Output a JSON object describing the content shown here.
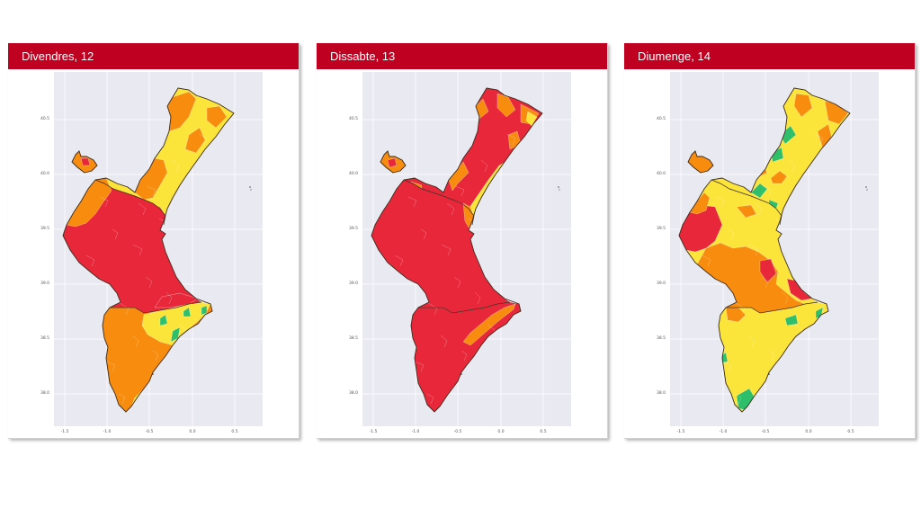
{
  "panels": [
    {
      "title": "Divendres, 12",
      "scheme": "fri"
    },
    {
      "title": "Dissabte, 13",
      "scheme": "sat"
    },
    {
      "title": "Diumenge, 14",
      "scheme": "sun"
    }
  ],
  "axes": {
    "y_ticks": [
      "40.5",
      "40.0",
      "39.5",
      "39.0",
      "38.5",
      "38.0"
    ],
    "x_ticks": [
      "-1.5",
      "-1.0",
      "-0.5",
      "0.0",
      "0.5"
    ]
  },
  "colors": {
    "header": "#c00021",
    "plot_bg": "#e9e9f1",
    "red": "#e8283a",
    "orange": "#f78c0f",
    "yellow": "#fce53a",
    "green": "#2fbf6a",
    "border": "#3a2a1a"
  },
  "chart_data": [
    {
      "type": "heatmap",
      "title": "Divendres, 12",
      "xlabel": "",
      "ylabel": "",
      "xlim": [
        -1.65,
        0.8
      ],
      "ylim": [
        37.75,
        40.95
      ],
      "x_ticks": [
        -1.5,
        -1.0,
        -0.5,
        0.0,
        0.5
      ],
      "y_ticks": [
        40.5,
        40.0,
        39.5,
        39.0,
        38.5,
        38.0
      ],
      "grid": true,
      "regions": [
        {
          "area": "North (Castelló) interior",
          "level": "orange"
        },
        {
          "area": "North (Castelló) coast",
          "level": "yellow"
        },
        {
          "area": "Castelló coastal strip",
          "level": "green"
        },
        {
          "area": "Central (València)",
          "level": "red"
        },
        {
          "area": "València west interior",
          "level": "orange"
        },
        {
          "area": "South (Alacant) interior",
          "level": "orange"
        },
        {
          "area": "Alacant east",
          "level": "yellow"
        },
        {
          "area": "Alacant coastal spots",
          "level": "green"
        }
      ]
    },
    {
      "type": "heatmap",
      "title": "Dissabte, 13",
      "xlabel": "",
      "ylabel": "",
      "xlim": [
        -1.65,
        0.8
      ],
      "ylim": [
        37.75,
        40.95
      ],
      "x_ticks": [
        -1.5,
        -1.0,
        -0.5,
        0.0,
        0.5
      ],
      "y_ticks": [
        40.5,
        40.0,
        39.5,
        39.0,
        38.5,
        38.0
      ],
      "grid": true,
      "regions": [
        {
          "area": "North (Castelló)",
          "level": "red/orange mix"
        },
        {
          "area": "Castelló coast",
          "level": "yellow"
        },
        {
          "area": "Central (València)",
          "level": "red"
        },
        {
          "area": "South (Alacant)",
          "level": "red"
        },
        {
          "area": "Alacant coastal strip",
          "level": "orange"
        }
      ]
    },
    {
      "type": "heatmap",
      "title": "Diumenge, 14",
      "xlabel": "",
      "ylabel": "",
      "xlim": [
        -1.65,
        0.8
      ],
      "ylim": [
        37.75,
        40.95
      ],
      "x_ticks": [
        -1.5,
        -1.0,
        -0.5,
        0.0,
        0.5
      ],
      "y_ticks": [
        40.5,
        40.0,
        39.5,
        39.0,
        38.5,
        38.0
      ],
      "grid": true,
      "regions": [
        {
          "area": "North (Castelló)",
          "level": "yellow"
        },
        {
          "area": "Castelló interior patches",
          "level": "orange"
        },
        {
          "area": "Castelló west border",
          "level": "green"
        },
        {
          "area": "València west",
          "level": "red"
        },
        {
          "area": "València centre-south",
          "level": "orange"
        },
        {
          "area": "València metro/Safor",
          "level": "red"
        },
        {
          "area": "South (Alacant)",
          "level": "yellow"
        },
        {
          "area": "Alacant scattered",
          "level": "green"
        }
      ]
    }
  ]
}
